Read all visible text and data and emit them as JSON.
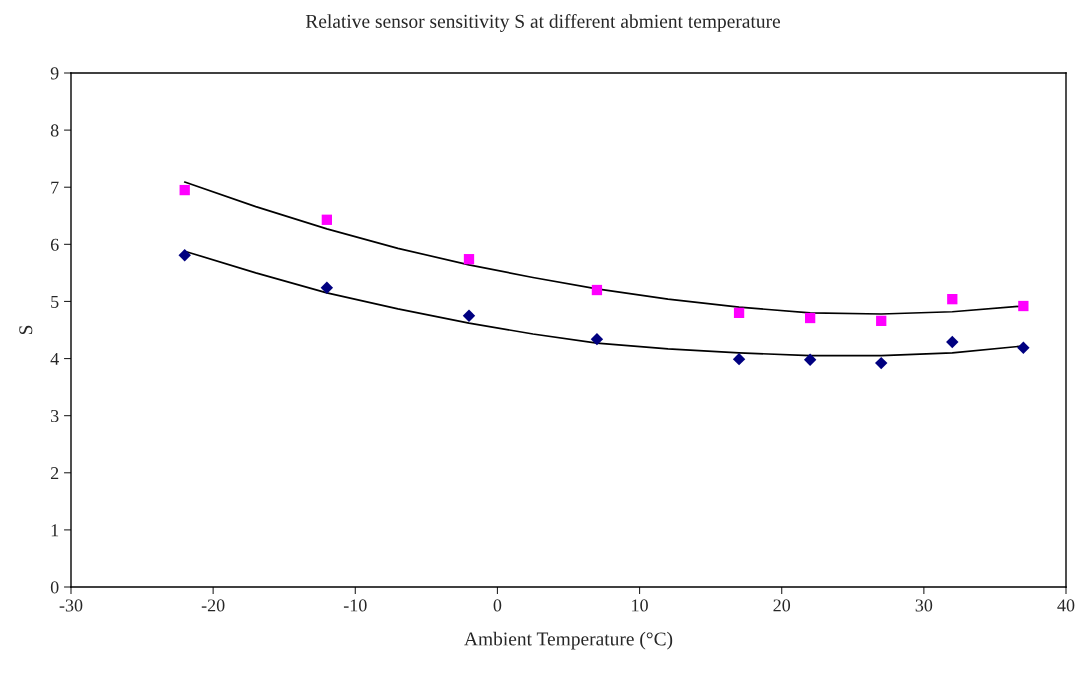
{
  "chart_data": {
    "type": "scatter",
    "title": "Relative sensor sensitivity S at different abmient temperature",
    "xlabel": "Ambient Temperature (°C)",
    "ylabel": "S",
    "xlim": [
      -30,
      40
    ],
    "xticks": [
      -30,
      -20,
      -10,
      0,
      10,
      20,
      30,
      40
    ],
    "ylim": [
      0,
      9
    ],
    "yticks": [
      0,
      1,
      2,
      3,
      4,
      5,
      6,
      7,
      8,
      9
    ],
    "grid": false,
    "series": [
      {
        "marker": "square",
        "color": "#ff00ff",
        "x": [
          -22,
          -12,
          -2,
          7,
          17,
          22,
          27,
          32,
          37
        ],
        "values": [
          6.95,
          6.43,
          5.74,
          5.2,
          4.8,
          4.71,
          4.66,
          5.04,
          4.92
        ]
      },
      {
        "marker": "diamond",
        "color": "#000080",
        "x": [
          -22,
          -12,
          -2,
          7,
          17,
          22,
          27,
          32,
          37
        ],
        "values": [
          5.81,
          5.24,
          4.75,
          4.34,
          3.99,
          3.98,
          3.92,
          4.29,
          4.19
        ]
      },
      {
        "type": "line",
        "marker": "none",
        "line_style": "solid",
        "color": "#000000",
        "x": [
          -22,
          -17,
          -12,
          -7,
          -2,
          2.5,
          7,
          12,
          17,
          22,
          27,
          32,
          37
        ],
        "values": [
          7.09,
          6.66,
          6.27,
          5.93,
          5.64,
          5.42,
          5.22,
          5.04,
          4.9,
          4.8,
          4.78,
          4.82,
          4.92
        ]
      },
      {
        "type": "line",
        "marker": "none",
        "line_style": "solid",
        "color": "#000000",
        "x": [
          -22,
          -17,
          -12,
          -7,
          -2,
          2.5,
          7,
          12,
          17,
          22,
          27,
          32,
          37
        ],
        "values": [
          5.88,
          5.5,
          5.15,
          4.87,
          4.62,
          4.43,
          4.27,
          4.17,
          4.1,
          4.05,
          4.05,
          4.1,
          4.22
        ]
      }
    ]
  }
}
